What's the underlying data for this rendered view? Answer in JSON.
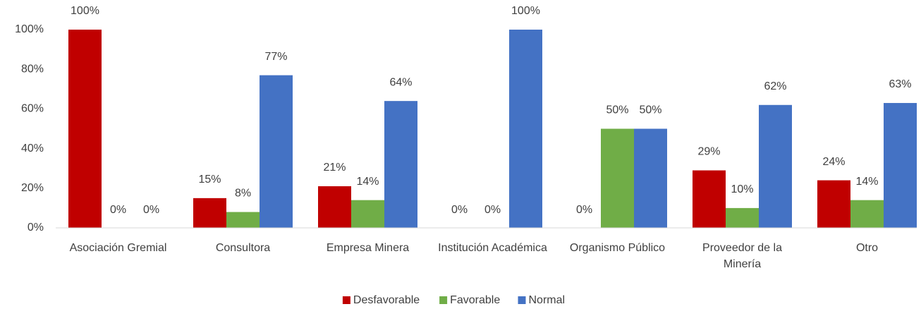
{
  "chart_data": {
    "type": "bar",
    "categories": [
      "Asociación Gremial",
      "Consultora",
      "Empresa Minera",
      "Institución Académica",
      "Organismo Público",
      "Proveedor de la Minería",
      "Otro"
    ],
    "series": [
      {
        "name": "Desfavorable",
        "color": "#c00000",
        "values": [
          100,
          15,
          21,
          0,
          0,
          29,
          24
        ],
        "value_labels": [
          "100%",
          "15%",
          "21%",
          "0%",
          "0%",
          "29%",
          "24%"
        ]
      },
      {
        "name": "Favorable",
        "color": "#70ad47",
        "values": [
          0,
          8,
          14,
          0,
          50,
          10,
          14
        ],
        "value_labels": [
          "0%",
          "8%",
          "14%",
          "0%",
          "50%",
          "10%",
          "14%"
        ]
      },
      {
        "name": "Normal",
        "color": "#4472c4",
        "values": [
          0,
          77,
          64,
          100,
          50,
          62,
          63
        ],
        "value_labels": [
          "0%",
          "77%",
          "64%",
          "100%",
          "50%",
          "62%",
          "63%"
        ]
      }
    ],
    "ylim": [
      0,
      100
    ],
    "yticks": [
      {
        "value": 0,
        "label": "0%"
      },
      {
        "value": 20,
        "label": "20%"
      },
      {
        "value": 40,
        "label": "40%"
      },
      {
        "value": 60,
        "label": "60%"
      },
      {
        "value": 80,
        "label": "80%"
      },
      {
        "value": 100,
        "label": "100%"
      }
    ],
    "grid": false,
    "legend": "bottom"
  }
}
